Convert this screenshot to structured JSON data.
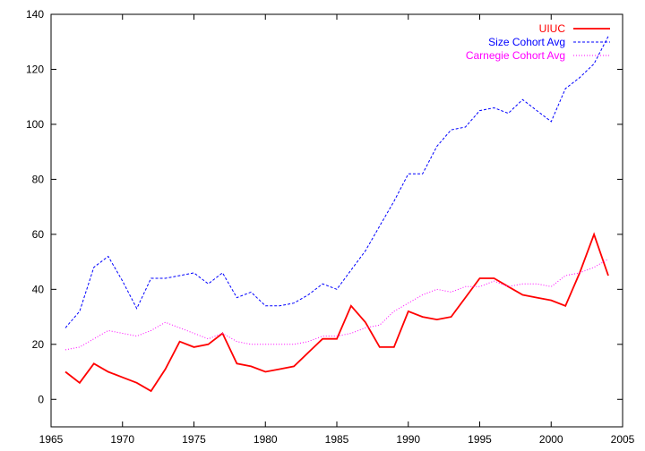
{
  "chart_data": {
    "type": "line",
    "title": "",
    "xlabel": "",
    "ylabel": "",
    "xlim": [
      1965,
      2005
    ],
    "ylim": [
      -10,
      140
    ],
    "x_ticks": [
      1965,
      1970,
      1975,
      1980,
      1985,
      1990,
      1995,
      2000,
      2005
    ],
    "y_ticks": [
      0,
      20,
      40,
      60,
      80,
      100,
      120,
      140
    ],
    "grid": false,
    "legend_position": "top-right",
    "series": [
      {
        "name": "UIUC",
        "color": "#ff0000",
        "style": "solid",
        "x": [
          1966,
          1967,
          1968,
          1969,
          1970,
          1971,
          1972,
          1973,
          1974,
          1975,
          1976,
          1977,
          1978,
          1979,
          1980,
          1981,
          1982,
          1983,
          1984,
          1985,
          1986,
          1987,
          1988,
          1989,
          1990,
          1991,
          1992,
          1993,
          1994,
          1995,
          1996,
          1997,
          1998,
          1999,
          2000,
          2001,
          2002,
          2003,
          2004
        ],
        "values": [
          10,
          6,
          13,
          10,
          8,
          6,
          3,
          11,
          21,
          19,
          20,
          24,
          13,
          12,
          10,
          11,
          12,
          17,
          22,
          22,
          34,
          28,
          19,
          19,
          32,
          30,
          29,
          30,
          37,
          44,
          44,
          41,
          38,
          37,
          36,
          34,
          46,
          60,
          45
        ]
      },
      {
        "name": "Size Cohort Avg",
        "color": "#0000ff",
        "style": "dashed",
        "x": [
          1966,
          1967,
          1968,
          1969,
          1970,
          1971,
          1972,
          1973,
          1974,
          1975,
          1976,
          1977,
          1978,
          1979,
          1980,
          1981,
          1982,
          1983,
          1984,
          1985,
          1986,
          1987,
          1988,
          1989,
          1990,
          1991,
          1992,
          1993,
          1994,
          1995,
          1996,
          1997,
          1998,
          1999,
          2000,
          2001,
          2002,
          2003,
          2004
        ],
        "values": [
          26,
          32,
          48,
          52,
          43,
          33,
          44,
          44,
          45,
          46,
          42,
          46,
          37,
          39,
          34,
          34,
          35,
          38,
          42,
          40,
          47,
          54,
          63,
          72,
          82,
          82,
          92,
          98,
          99,
          105,
          106,
          104,
          109,
          105,
          101,
          113,
          117,
          122,
          132
        ]
      },
      {
        "name": "Carnegie Cohort Avg",
        "color": "#ff00ff",
        "style": "dotted",
        "x": [
          1966,
          1967,
          1968,
          1969,
          1970,
          1971,
          1972,
          1973,
          1974,
          1975,
          1976,
          1977,
          1978,
          1979,
          1980,
          1981,
          1982,
          1983,
          1984,
          1985,
          1986,
          1987,
          1988,
          1989,
          1990,
          1991,
          1992,
          1993,
          1994,
          1995,
          1996,
          1997,
          1998,
          1999,
          2000,
          2001,
          2002,
          2003,
          2004
        ],
        "values": [
          18,
          19,
          22,
          25,
          24,
          23,
          25,
          28,
          26,
          24,
          22,
          24,
          21,
          20,
          20,
          20,
          20,
          21,
          23,
          23,
          24,
          26,
          27,
          32,
          35,
          38,
          40,
          39,
          41,
          41,
          43,
          41,
          42,
          42,
          41,
          45,
          46,
          48,
          51
        ]
      }
    ]
  }
}
